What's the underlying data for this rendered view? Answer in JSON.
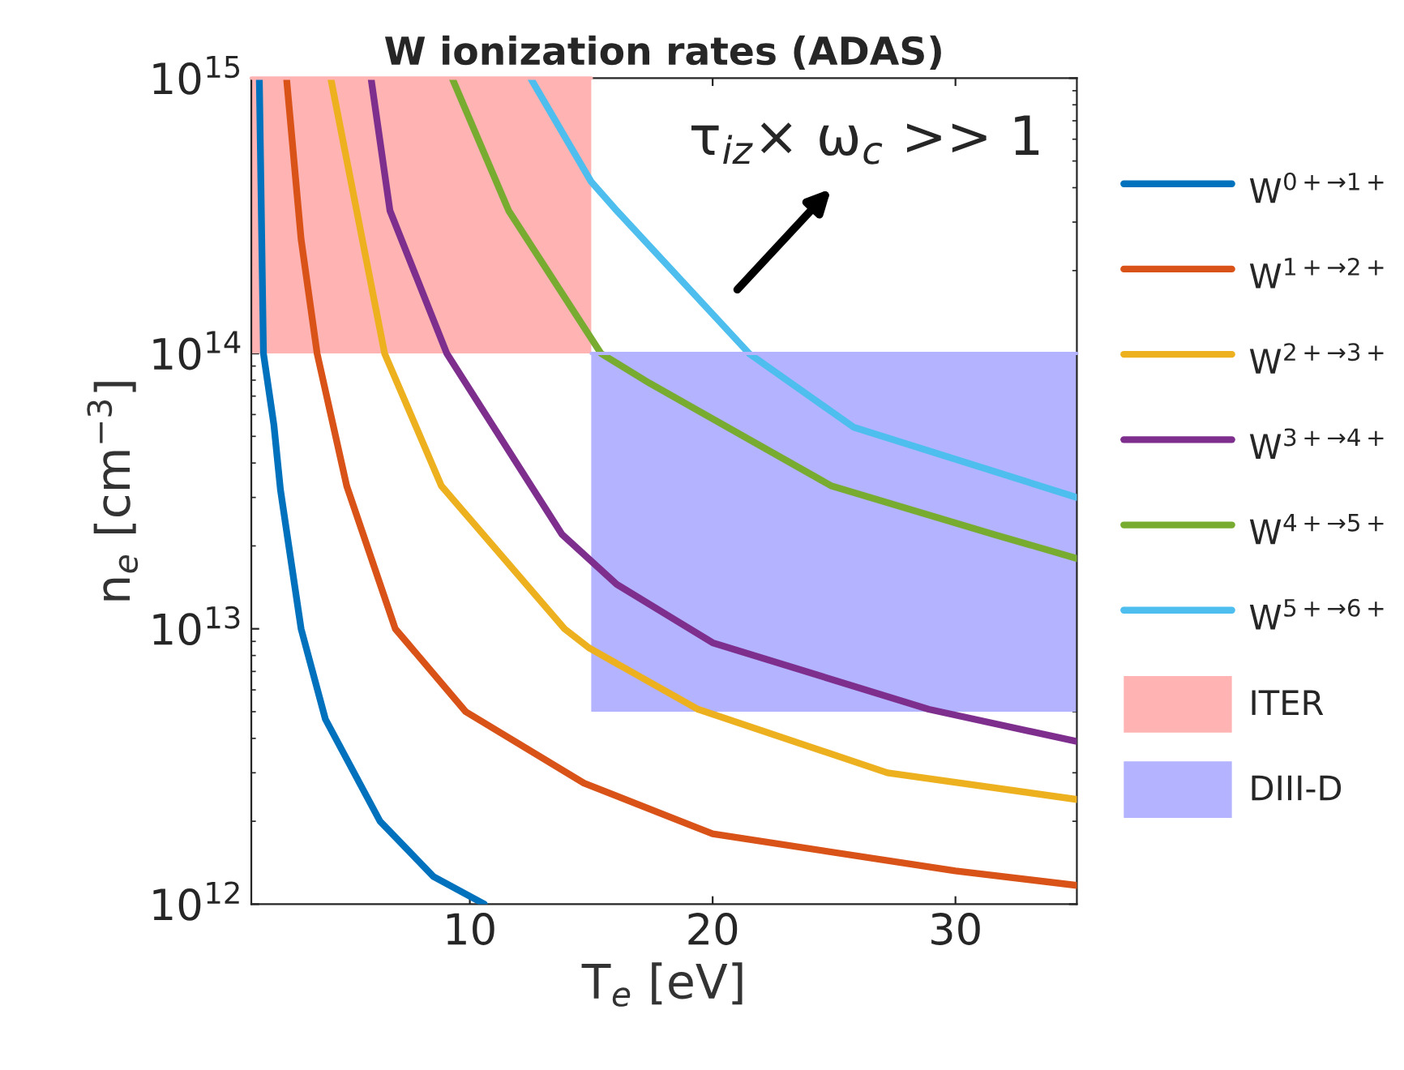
{
  "chart_data": {
    "type": "line",
    "title": "W ionization rates (ADAS)",
    "xlabel": "T$_{e}$ [eV]",
    "ylabel": "n$_{e}$ [cm$^{−3}$]",
    "log": "y",
    "xlim": [
      1,
      35
    ],
    "xticks": [
      10,
      20,
      30
    ],
    "ylim": [
      1000000000000.0,
      1000000000000000.0
    ],
    "yticks": [
      {
        "value": 1000000000000.0,
        "label": "10$^{12}$"
      },
      {
        "value": 10000000000000.0,
        "label": "10$^{13}$"
      },
      {
        "value": 100000000000000.0,
        "label": "10$^{14}$"
      },
      {
        "value": 1000000000000000.0,
        "label": "10$^{15}$"
      }
    ],
    "grid": false,
    "legend": "right",
    "line_style": "solid",
    "marker": "none",
    "series": [
      {
        "name": "W$^{0+→1+}$",
        "color": "#0072bd",
        "x": [
          1.33,
          1.5,
          1.93,
          2.2,
          3.05,
          4.05,
          6.3,
          8.5,
          10.6
        ],
        "values": [
          1000000000000000.0,
          100000000000000.0,
          55000000000000.0,
          32000000000000.0,
          10000000000000.0,
          4700000000000.0,
          2000000000000.0,
          1260000000000.0,
          1000000000000.0
        ]
      },
      {
        "name": "W$^{1+→2+}$",
        "color": "#d95319",
        "x": [
          2.45,
          3.05,
          3.71,
          4.93,
          6.93,
          9.83,
          14.7,
          20,
          30,
          35
        ],
        "values": [
          1000000000000000.0,
          260000000000000.0,
          100000000000000.0,
          33000000000000.0,
          10000000000000.0,
          5000000000000.0,
          2750000000000.0,
          1800000000000.0,
          1320000000000.0,
          1170000000000.0
        ]
      },
      {
        "name": "W$^{2+→3+}$",
        "color": "#edb120",
        "x": [
          4.27,
          6.49,
          8.83,
          13.9,
          14.93,
          19.4,
          27.2,
          35
        ],
        "values": [
          1000000000000000.0,
          100000000000000.0,
          33000000000000.0,
          10000000000000.0,
          8500000000000.0,
          5100000000000.0,
          3000000000000.0,
          2400000000000.0
        ]
      },
      {
        "name": "W$^{3+→4+}$",
        "color": "#7e2f8e",
        "x": [
          5.93,
          6.71,
          9.05,
          13.8,
          16.05,
          20,
          28.9,
          35
        ],
        "values": [
          1000000000000000.0,
          330000000000000.0,
          100000000000000.0,
          22000000000000.0,
          14500000000000.0,
          8900000000000.0,
          5100000000000.0,
          3900000000000.0
        ]
      },
      {
        "name": "W$^{4+→5+}$",
        "color": "#77ac30",
        "x": [
          9.27,
          11.6,
          15.4,
          17.4,
          24.9,
          31.6,
          35
        ],
        "values": [
          1000000000000000.0,
          330000000000000.0,
          100000000000000.0,
          78000000000000.0,
          33000000000000.0,
          22000000000000.0,
          18000000000000.0
        ]
      },
      {
        "name": "W$^{5+→6+}$",
        "color": "#4dbeee",
        "x": [
          12.5,
          15,
          16.05,
          21.5,
          25.8,
          35
        ],
        "values": [
          1000000000000000.0,
          420000000000000.0,
          330000000000000.0,
          100000000000000.0,
          54000000000000.0,
          30000000000000.0
        ]
      },
      {
        "name": "ITER",
        "type": "line",
        "color": "#ffb3b3",
        "x": [
          1,
          15
        ],
        "values": [
          1000000000000000.0,
          1000000000000000.0
        ],
        "lower": [
          100000000000000.0,
          100000000000000.0
        ],
        "upper": [
          1000000000000000.0,
          1000000000000000.0
        ]
      },
      {
        "name": "DIII-D",
        "type": "line",
        "color": "#b3b3ff",
        "x": [
          15,
          35
        ],
        "values": [
          100000000000000.0,
          100000000000000.0
        ],
        "lower": [
          5000000000000.0,
          5000000000000.0
        ],
        "upper": [
          100000000000000.0,
          100000000000000.0
        ]
      }
    ],
    "annotations": [
      "τ$_{iz}$× ω$_{c}$ >> 1"
    ]
  }
}
